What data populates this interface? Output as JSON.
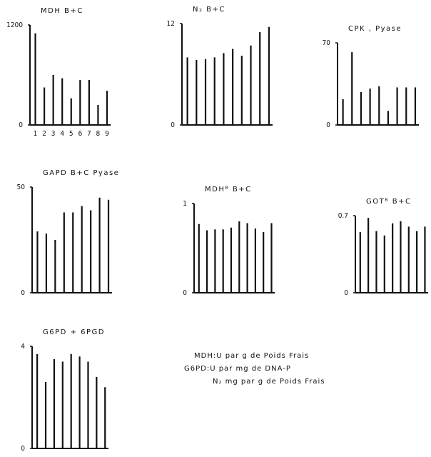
{
  "chart_data": [
    {
      "type": "bar",
      "title": "MDH B+C",
      "categories": [
        "1",
        "2",
        "3",
        "4",
        "5",
        "6",
        "7",
        "8",
        "9"
      ],
      "values": [
        1100,
        450,
        600,
        560,
        320,
        540,
        540,
        240,
        410
      ],
      "ylim": [
        0,
        1200
      ],
      "yticks": [
        0,
        1200
      ],
      "color": "#111111"
    },
    {
      "type": "bar",
      "title": "N₂ B+C",
      "values": [
        8,
        7.7,
        7.8,
        8,
        8.5,
        9,
        8.2,
        9.4,
        11,
        11.6
      ],
      "ylim": [
        0,
        12
      ],
      "yticks": [
        0,
        12
      ],
      "color": "#111111"
    },
    {
      "type": "bar",
      "title": "CPK , Pyase",
      "values": [
        22,
        62,
        28,
        31,
        33,
        12,
        32,
        32,
        32
      ],
      "ylim": [
        0,
        70
      ],
      "yticks": [
        0,
        70
      ],
      "color": "#111111"
    },
    {
      "type": "bar",
      "title": "GAPD B+C Pyase",
      "values": [
        29,
        28,
        25,
        38,
        38,
        41,
        39,
        45,
        44
      ],
      "ylim": [
        0,
        50
      ],
      "yticks": [
        0,
        50
      ],
      "color": "#111111"
    },
    {
      "type": "bar",
      "title": "MDHᴮ B+C",
      "values": [
        0.77,
        0.7,
        0.71,
        0.71,
        0.73,
        0.8,
        0.78,
        0.72,
        0.68,
        0.78
      ],
      "ylim": [
        0,
        1
      ],
      "yticks": [
        0,
        1
      ],
      "color": "#111111"
    },
    {
      "type": "bar",
      "title": "GOTᴮ B+C",
      "values": [
        0.55,
        0.68,
        0.56,
        0.52,
        0.63,
        0.65,
        0.6,
        0.56,
        0.6
      ],
      "ylim": [
        0,
        0.7
      ],
      "yticks": [
        0,
        0.7
      ],
      "color": "#111111"
    },
    {
      "type": "bar",
      "title": "G6PD + 6PGD",
      "values": [
        3.7,
        2.6,
        3.5,
        3.4,
        3.7,
        3.6,
        3.4,
        2.8,
        2.4
      ],
      "ylim": [
        0,
        4
      ],
      "yticks": [
        0,
        4
      ],
      "color": "#111111"
    }
  ],
  "notes": [
    "MDH:U par g de Poids Frais",
    "G6PD:U par mg de DNA-P",
    "N₂ mg par g de Poids Frais"
  ]
}
